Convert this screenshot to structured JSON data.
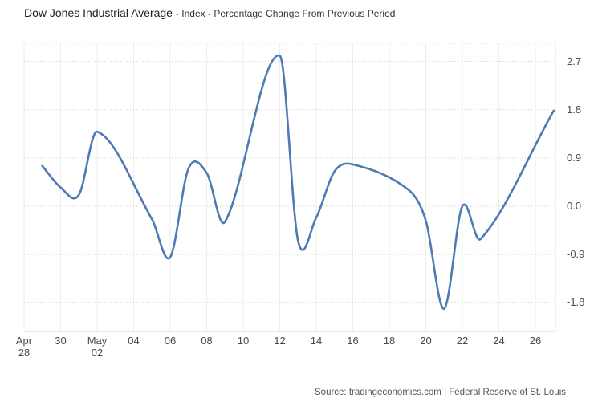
{
  "header": {
    "title": "Dow Jones Industrial Average",
    "subtitle": "- Index - Percentage Change From Previous Period"
  },
  "footer": {
    "source_text": "Source: tradingeconomics.com | Federal Reserve of St. Louis"
  },
  "chart_data": {
    "type": "line",
    "title": "Dow Jones Industrial Average - Index - Percentage Change From Previous Period",
    "xlabel": "",
    "ylabel": "",
    "legend": "none",
    "grid": {
      "horizontal": "dotted",
      "vertical": "solid"
    },
    "line_color": "#4d7ab5",
    "ylim": [
      -2.33,
      3.03
    ],
    "x_range_days": [
      0,
      29.1
    ],
    "y_ticks": [
      {
        "label": "2.7",
        "value": 2.7
      },
      {
        "label": "1.8",
        "value": 1.8
      },
      {
        "label": "0.9",
        "value": 0.9
      },
      {
        "label": "0.0",
        "value": 0.0
      },
      {
        "label": "-0.9",
        "value": -0.9
      },
      {
        "label": "-1.8",
        "value": -1.8
      }
    ],
    "x_ticks": [
      {
        "day": 0,
        "line1": "Apr",
        "line2": "28"
      },
      {
        "day": 2,
        "line1": "30",
        "line2": ""
      },
      {
        "day": 4,
        "line1": "May",
        "line2": "02"
      },
      {
        "day": 6,
        "line1": "04",
        "line2": ""
      },
      {
        "day": 8,
        "line1": "06",
        "line2": ""
      },
      {
        "day": 10,
        "line1": "08",
        "line2": ""
      },
      {
        "day": 12,
        "line1": "10",
        "line2": ""
      },
      {
        "day": 14,
        "line1": "12",
        "line2": ""
      },
      {
        "day": 16,
        "line1": "14",
        "line2": ""
      },
      {
        "day": 18,
        "line1": "16",
        "line2": ""
      },
      {
        "day": 20,
        "line1": "18",
        "line2": ""
      },
      {
        "day": 22,
        "line1": "20",
        "line2": ""
      },
      {
        "day": 24,
        "line1": "22",
        "line2": ""
      },
      {
        "day": 26,
        "line1": "24",
        "line2": ""
      },
      {
        "day": 28,
        "line1": "26",
        "line2": ""
      }
    ],
    "series": [
      {
        "name": "Dow Jones Industrial Average daily % change",
        "unit": "percent",
        "points": [
          {
            "date": "Apr 29",
            "day": 1,
            "value": 0.75
          },
          {
            "date": "Apr 30",
            "day": 2,
            "value": 0.35
          },
          {
            "date": "May 01",
            "day": 3,
            "value": 0.21
          },
          {
            "date": "May 02",
            "day": 4,
            "value": 1.39
          },
          {
            "date": "May 05",
            "day": 7,
            "value": -0.24
          },
          {
            "date": "May 06",
            "day": 8,
            "value": -0.95
          },
          {
            "date": "May 07",
            "day": 9,
            "value": 0.7
          },
          {
            "date": "May 08",
            "day": 10,
            "value": 0.62
          },
          {
            "date": "May 09",
            "day": 11,
            "value": -0.29
          },
          {
            "date": "May 12",
            "day": 14,
            "value": 2.81
          },
          {
            "date": "May 13",
            "day": 15,
            "value": -0.64
          },
          {
            "date": "May 14",
            "day": 16,
            "value": -0.21
          },
          {
            "date": "May 15",
            "day": 17,
            "value": 0.65
          },
          {
            "date": "May 16",
            "day": 18,
            "value": 0.78
          },
          {
            "date": "May 19",
            "day": 21,
            "value": 0.32
          },
          {
            "date": "May 20",
            "day": 22,
            "value": -0.27
          },
          {
            "date": "May 21",
            "day": 23,
            "value": -1.91
          },
          {
            "date": "May 22",
            "day": 24,
            "value": 0.0
          },
          {
            "date": "May 23",
            "day": 25,
            "value": -0.61
          },
          {
            "date": "May 27",
            "day": 29,
            "value": 1.78
          }
        ]
      }
    ]
  }
}
